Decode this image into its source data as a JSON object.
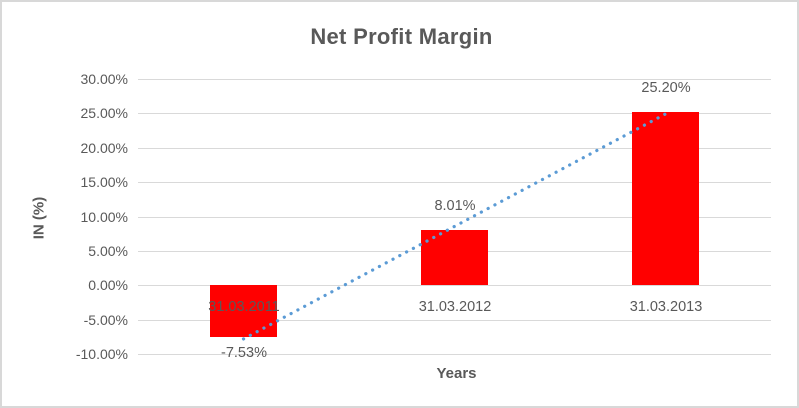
{
  "chart_data": {
    "type": "bar",
    "title": "Net Profit Margin",
    "xlabel": "Years",
    "ylabel": "IN (%)",
    "categories": [
      "31.03.2011",
      "31.03.2012",
      "31.03.2013"
    ],
    "series": [
      {
        "name": "Net Profit Margin",
        "values": [
          -7.53,
          8.01,
          25.2
        ],
        "data_labels": [
          "-7.53%",
          "8.01%",
          "25.20%"
        ],
        "color": "#FF0000"
      }
    ],
    "y_ticks": [
      "30.00%",
      "25.00%",
      "20.00%",
      "15.00%",
      "10.00%",
      "5.00%",
      "0.00%",
      "-5.00%",
      "-10.00%"
    ],
    "y_tick_values": [
      30,
      25,
      20,
      15,
      10,
      5,
      0,
      -5,
      -10
    ],
    "ylim": [
      -10,
      30
    ],
    "grid": true,
    "legend": false,
    "trendline": {
      "type": "linear",
      "style": "dotted",
      "color": "#5B9BD5"
    },
    "colors": {
      "bar": "#FF0000",
      "trendline": "#5B9BD5",
      "text": "#595959",
      "gridline": "#D9D9D9",
      "frame_border": "#D8D8D8",
      "background": "#FFFFFF"
    }
  }
}
